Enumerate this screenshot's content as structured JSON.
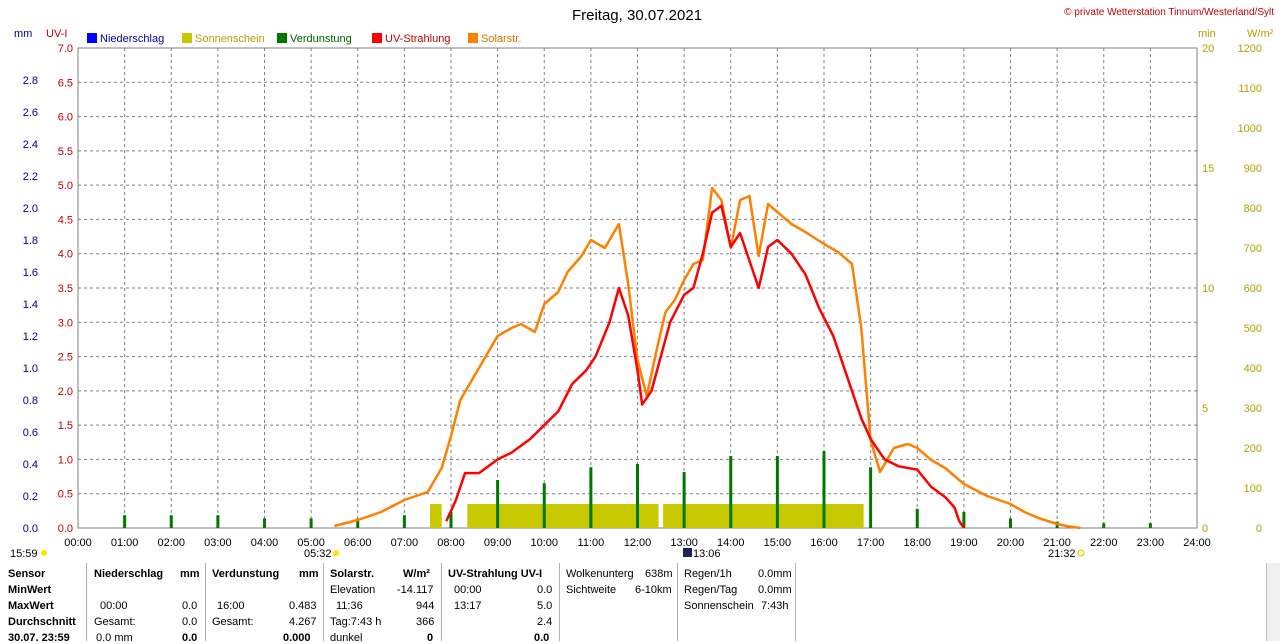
{
  "header": {
    "title": "Freitag, 30.07.2021",
    "copyright": "© private Wetterstation Tinnum/Westerland/Sylt"
  },
  "axes": {
    "mm_unit": "mm",
    "uv_unit": "UV-I",
    "min_unit": "min",
    "wm2_unit": "W/m²",
    "mm_ticks": [
      "0.0",
      "0.2",
      "0.4",
      "0.6",
      "0.8",
      "1.0",
      "1.2",
      "1.4",
      "1.6",
      "1.8",
      "2.0",
      "2.2",
      "2.4",
      "2.6",
      "2.8"
    ],
    "uv_ticks": [
      "0.0",
      "0.5",
      "1.0",
      "1.5",
      "2.0",
      "2.5",
      "3.0",
      "3.5",
      "4.0",
      "4.5",
      "5.0",
      "5.5",
      "6.0",
      "6.5",
      "7.0"
    ],
    "min_ticks": [
      "0",
      "5",
      "10",
      "15",
      "20"
    ],
    "wm2_ticks": [
      "0",
      "100",
      "200",
      "300",
      "400",
      "500",
      "600",
      "700",
      "800",
      "900",
      "1000",
      "1100",
      "1200"
    ],
    "time_ticks": [
      "00:00",
      "01:00",
      "02:00",
      "03:00",
      "04:00",
      "05:00",
      "06:00",
      "07:00",
      "08:00",
      "09:00",
      "10:00",
      "11:00",
      "12:00",
      "13:00",
      "14:00",
      "15:00",
      "16:00",
      "17:00",
      "18:00",
      "19:00",
      "20:00",
      "21:00",
      "22:00",
      "23:00",
      "24:00"
    ]
  },
  "markers": {
    "left_time": "15:59",
    "sunrise": "05:32",
    "solar_noon": "13:06",
    "sunset": "21:32"
  },
  "colors": {
    "niederschlag": "#0000ff",
    "sonnenschein": "#c8c800",
    "verdunstung": "#007800",
    "uv": "#ff0000",
    "solar": "#ff8000",
    "grid": "#808080",
    "axis_left": "#000080",
    "axis_right": "#b4a000",
    "axis_uv": "#c00000"
  },
  "chart_data": {
    "type": "line",
    "title": "Freitag, 30.07.2021",
    "x_range": [
      "00:00",
      "24:00"
    ],
    "series": [
      {
        "name": "Niederschlag",
        "axis": "mm",
        "ylim": [
          0,
          3.0
        ],
        "values": []
      },
      {
        "name": "Sonnenschein",
        "axis": "min",
        "ylim": [
          0,
          20
        ],
        "type": "bar",
        "x": [
          7.7,
          8.3,
          8.5,
          9,
          9.5,
          10,
          10.5,
          11,
          11.5,
          12,
          12.4,
          13,
          13.5,
          14,
          14.5,
          15,
          15.5,
          16,
          16.5
        ],
        "values": [
          1,
          1,
          1,
          1,
          1,
          1,
          1,
          1,
          1,
          1,
          1,
          1,
          1,
          1,
          1,
          1,
          1,
          1,
          1
        ]
      },
      {
        "name": "Verdunstung",
        "axis": "mm",
        "ylim": [
          0,
          3.0
        ],
        "type": "bar",
        "x": [
          1,
          2,
          3,
          4,
          5,
          6,
          7,
          8,
          9,
          10,
          11,
          12,
          13,
          14,
          15,
          16,
          17,
          18,
          19,
          20,
          21,
          22,
          23
        ],
        "values": [
          0.08,
          0.08,
          0.08,
          0.06,
          0.06,
          0.06,
          0.08,
          0.1,
          0.3,
          0.28,
          0.38,
          0.4,
          0.35,
          0.45,
          0.45,
          0.48,
          0.38,
          0.12,
          0.1,
          0.06,
          0.04,
          0.03,
          0.03
        ]
      },
      {
        "name": "UV-Strahlung",
        "axis": "UV-I",
        "ylim": [
          0,
          7.0
        ],
        "x": [
          7.9,
          8.1,
          8.3,
          8.6,
          9.0,
          9.3,
          9.5,
          9.7,
          10.0,
          10.3,
          10.6,
          10.9,
          11.1,
          11.4,
          11.6,
          11.8,
          12.0,
          12.1,
          12.3,
          12.5,
          12.7,
          13.0,
          13.2,
          13.4,
          13.6,
          13.8,
          14.0,
          14.2,
          14.4,
          14.6,
          14.8,
          15.0,
          15.3,
          15.6,
          15.9,
          16.2,
          16.5,
          16.8,
          17.0,
          17.3,
          17.6,
          18.0,
          18.3,
          18.6,
          18.8,
          18.9,
          19.0
        ],
        "values": [
          0.1,
          0.4,
          0.8,
          0.8,
          1.0,
          1.1,
          1.2,
          1.3,
          1.5,
          1.7,
          2.1,
          2.3,
          2.5,
          3.0,
          3.5,
          3.1,
          2.3,
          1.8,
          2.0,
          2.5,
          3.0,
          3.4,
          3.5,
          4.0,
          4.6,
          4.7,
          4.1,
          4.3,
          3.9,
          3.5,
          4.1,
          4.2,
          4.0,
          3.7,
          3.2,
          2.8,
          2.2,
          1.6,
          1.3,
          1.0,
          0.9,
          0.85,
          0.6,
          0.45,
          0.3,
          0.1,
          0.0
        ]
      },
      {
        "name": "Solarstr.",
        "axis": "W/m²",
        "ylim": [
          0,
          1200
        ],
        "x": [
          5.5,
          6.0,
          6.5,
          7.0,
          7.5,
          7.6,
          7.8,
          8.0,
          8.2,
          8.5,
          8.8,
          9.0,
          9.3,
          9.5,
          9.8,
          10.0,
          10.3,
          10.5,
          10.8,
          11.0,
          11.3,
          11.6,
          11.8,
          12.0,
          12.2,
          12.4,
          12.6,
          12.8,
          13.0,
          13.2,
          13.4,
          13.6,
          13.8,
          14.0,
          14.2,
          14.4,
          14.6,
          14.8,
          15.0,
          15.3,
          15.6,
          16.0,
          16.3,
          16.6,
          16.8,
          17.0,
          17.2,
          17.5,
          17.8,
          18.0,
          18.3,
          18.6,
          19.0,
          19.5,
          20.0,
          20.3,
          20.6,
          21.0,
          21.2,
          21.5
        ],
        "values": [
          5,
          20,
          40,
          70,
          90,
          110,
          150,
          230,
          320,
          380,
          440,
          480,
          500,
          510,
          490,
          560,
          590,
          640,
          680,
          720,
          700,
          760,
          610,
          420,
          330,
          440,
          540,
          570,
          620,
          660,
          670,
          850,
          820,
          700,
          820,
          830,
          680,
          810,
          790,
          760,
          740,
          710,
          690,
          660,
          500,
          220,
          140,
          200,
          210,
          200,
          170,
          150,
          110,
          80,
          60,
          40,
          25,
          10,
          5,
          0
        ]
      }
    ],
    "legend": [
      "Niederschlag",
      "Sonnenschein",
      "Verdunstung",
      "UV-Strahlung",
      "Solarstr."
    ],
    "grid": true,
    "legend_position": "top"
  },
  "stats": {
    "row_labels": [
      "Sensor",
      "MinWert",
      "MaxWert",
      "Durchschnitt",
      "30.07. 23:59"
    ],
    "niederschlag": {
      "title": "Niederschlag",
      "unit": "mm",
      "max_time": "00:00",
      "max_val": "0.0",
      "gesamt_label": "Gesamt:",
      "gesamt_val": "0.0",
      "last_val": "0.0 mm",
      "avg_val": "0.0"
    },
    "verdunstung": {
      "title": "Verdunstung",
      "unit": "mm",
      "max_time": "16:00",
      "max_val": "0.483",
      "gesamt_label": "Gesamt:",
      "gesamt_val": "4.267",
      "avg_val": "0.000"
    },
    "solar": {
      "title": "Solarstr.",
      "unit": "W/m²",
      "elev_label": "Elevation",
      "elev_val": "-14.117",
      "max_time": "11:36",
      "max_val": "944",
      "tag_label": "Tag:7:43 h",
      "tag_val": "366",
      "dunkel_label": "dunkel",
      "dunkel_val": "0"
    },
    "uv": {
      "title": "UV-Strahlung UV-I",
      "min_time": "00:00",
      "min_val": "0.0",
      "max_time": "13:17",
      "max_val": "5.0",
      "avg_val": "2.4",
      "last_val": "0.0"
    },
    "wolken": {
      "label1": "Wolkenunterg",
      "val1": "638m",
      "label2": "Sichtweite",
      "val2": "6-10km"
    },
    "regen": {
      "label1": "Regen/1h",
      "val1": "0.0mm",
      "label2": "Regen/Tag",
      "val2": "0.0mm",
      "label3": "Sonnenschein",
      "val3": "7:43h"
    }
  }
}
